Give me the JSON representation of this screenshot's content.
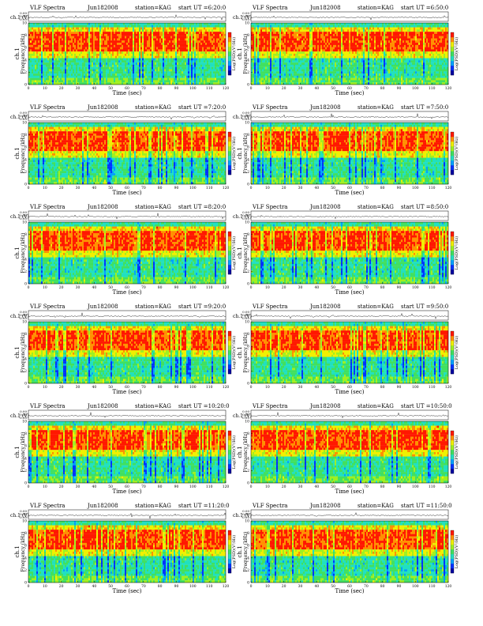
{
  "page": {
    "colors": {
      "background": "#ffffff",
      "colormap": [
        "#0000a0",
        "#0033ff",
        "#00a0ff",
        "#20e0c0",
        "#40e060",
        "#a0f020",
        "#f0f000",
        "#ff9000",
        "#ff1800"
      ]
    }
  },
  "chart_data": [
    {
      "type": "heatmap",
      "title": "VLF Spectra",
      "date": "Jun182008",
      "station": "station=KAG",
      "start": "start  UT =6:20:0",
      "xlabel": "Time (sec)",
      "ylabel_top": "ch.1 (V)",
      "ylabel_channel": "ch.1",
      "ylabel": "Frequency (kHz)",
      "colorbar_label": "Log(PSD)(V²/Hz)",
      "x": [
        0,
        10,
        20,
        30,
        40,
        50,
        60,
        70,
        80,
        90,
        100,
        110,
        120
      ],
      "y": [
        0,
        2,
        4,
        6,
        8,
        10
      ],
      "waveform_ticks": [
        "0.00",
        "0.50",
        "-0.50"
      ],
      "xlim": [
        0,
        120
      ],
      "ylim": [
        0,
        10
      ],
      "grid": false
    },
    {
      "type": "heatmap",
      "title": "VLF Spectra",
      "date": "Jun182008",
      "station": "station=KAG",
      "start": "start  UT =6:50:0",
      "xlabel": "Time (sec)",
      "ylabel_top": "ch.1 (V)",
      "ylabel_channel": "ch.1",
      "ylabel": "Frequency (kHz)",
      "colorbar_label": "Log(PSD)(V²/Hz)",
      "x": [
        0,
        10,
        20,
        30,
        40,
        50,
        60,
        70,
        80,
        90,
        100,
        110,
        120
      ],
      "y": [
        0,
        2,
        4,
        6,
        8,
        10
      ],
      "waveform_ticks": [
        "0.00",
        "0.50",
        "-0.50"
      ],
      "xlim": [
        0,
        120
      ],
      "ylim": [
        0,
        10
      ],
      "grid": false
    },
    {
      "type": "heatmap",
      "title": "VLF Spectra",
      "date": "Jun182008",
      "station": "station=KAG",
      "start": "start  UT =7:20:0",
      "xlabel": "Time (sec)",
      "ylabel_top": "ch.1 (V)",
      "ylabel_channel": "ch.1",
      "ylabel": "Frequency (kHz)",
      "colorbar_label": "Log(PSD)(V²/Hz)",
      "x": [
        0,
        10,
        20,
        30,
        40,
        50,
        60,
        70,
        80,
        90,
        100,
        110,
        120
      ],
      "y": [
        0,
        2,
        4,
        6,
        8,
        10
      ],
      "waveform_ticks": [
        "0.00",
        "0.50",
        "-0.50"
      ],
      "xlim": [
        0,
        120
      ],
      "ylim": [
        0,
        10
      ],
      "grid": false
    },
    {
      "type": "heatmap",
      "title": "VLF Spectra",
      "date": "Jun182008",
      "station": "station=KAG",
      "start": "start  UT =7:50:0",
      "xlabel": "Time (sec)",
      "ylabel_top": "ch.1 (V)",
      "ylabel_channel": "ch.1",
      "ylabel": "Frequency (kHz)",
      "colorbar_label": "Log(PSD)(V²/Hz)",
      "x": [
        0,
        10,
        20,
        30,
        40,
        50,
        60,
        70,
        80,
        90,
        100,
        110,
        120
      ],
      "y": [
        0,
        2,
        4,
        6,
        8,
        10
      ],
      "waveform_ticks": [
        "0.00",
        "0.50",
        "-0.50"
      ],
      "xlim": [
        0,
        120
      ],
      "ylim": [
        0,
        10
      ],
      "grid": false
    },
    {
      "type": "heatmap",
      "title": "VLF Spectra",
      "date": "Jun182008",
      "station": "station=KAG",
      "start": "start  UT =8:20:0",
      "xlabel": "Time (sec)",
      "ylabel_top": "ch.1 (V)",
      "ylabel_channel": "ch.1",
      "ylabel": "Frequency (kHz)",
      "colorbar_label": "Log(PSD)(V²/Hz)",
      "x": [
        0,
        10,
        20,
        30,
        40,
        50,
        60,
        70,
        80,
        90,
        100,
        110,
        120
      ],
      "y": [
        0,
        2,
        4,
        6,
        8,
        10
      ],
      "waveform_ticks": [
        "0.00",
        "0.50",
        "-0.50"
      ],
      "xlim": [
        0,
        120
      ],
      "ylim": [
        0,
        10
      ],
      "grid": false
    },
    {
      "type": "heatmap",
      "title": "VLF Spectra",
      "date": "Jun182008",
      "station": "station=KAG",
      "start": "start  UT =8:50:0",
      "xlabel": "Time (sec)",
      "ylabel_top": "ch.1 (V)",
      "ylabel_channel": "ch.1",
      "ylabel": "Frequency (kHz)",
      "colorbar_label": "Log(PSD)(V²/Hz)",
      "x": [
        0,
        10,
        20,
        30,
        40,
        50,
        60,
        70,
        80,
        90,
        100,
        110,
        120
      ],
      "y": [
        0,
        2,
        4,
        6,
        8,
        10
      ],
      "waveform_ticks": [
        "0.00",
        "0.50",
        "-0.50"
      ],
      "xlim": [
        0,
        120
      ],
      "ylim": [
        0,
        10
      ],
      "grid": false
    },
    {
      "type": "heatmap",
      "title": "VLF Spectra",
      "date": "Jun182008",
      "station": "station=KAG",
      "start": "start  UT =9:20:0",
      "xlabel": "Time (sec)",
      "ylabel_top": "ch.1 (V)",
      "ylabel_channel": "ch.1",
      "ylabel": "Frequency (kHz)",
      "colorbar_label": "Log(PSD)(V²/Hz)",
      "x": [
        0,
        10,
        20,
        30,
        40,
        50,
        60,
        70,
        80,
        90,
        100,
        110,
        120
      ],
      "y": [
        0,
        2,
        4,
        6,
        8,
        10
      ],
      "waveform_ticks": [
        "0.00",
        "0.50",
        "-0.50"
      ],
      "xlim": [
        0,
        120
      ],
      "ylim": [
        0,
        10
      ],
      "grid": false
    },
    {
      "type": "heatmap",
      "title": "VLF Spectra",
      "date": "Jun182008",
      "station": "station=KAG",
      "start": "start  UT =9:50:0",
      "xlabel": "Time (sec)",
      "ylabel_top": "ch.1 (V)",
      "ylabel_channel": "ch.1",
      "ylabel": "Frequency (kHz)",
      "colorbar_label": "Log(PSD)(V²/Hz)",
      "x": [
        0,
        10,
        20,
        30,
        40,
        50,
        60,
        70,
        80,
        90,
        100,
        110,
        120
      ],
      "y": [
        0,
        2,
        4,
        6,
        8,
        10
      ],
      "waveform_ticks": [
        "0.00",
        "0.50",
        "-0.50"
      ],
      "xlim": [
        0,
        120
      ],
      "ylim": [
        0,
        10
      ],
      "grid": false
    },
    {
      "type": "heatmap",
      "title": "VLF Spectra",
      "date": "Jun182008",
      "station": "station=KAG",
      "start": "start  UT =10:20:0",
      "xlabel": "Time (sec)",
      "ylabel_top": "ch.1 (V)",
      "ylabel_channel": "ch.1",
      "ylabel": "Frequency (kHz)",
      "colorbar_label": "Log(PSD)(V²/Hz)",
      "x": [
        0,
        10,
        20,
        30,
        40,
        50,
        60,
        70,
        80,
        90,
        100,
        110,
        120
      ],
      "y": [
        0,
        2,
        4,
        6,
        8,
        10
      ],
      "waveform_ticks": [
        "0.00",
        "0.50",
        "-0.50"
      ],
      "xlim": [
        0,
        120
      ],
      "ylim": [
        0,
        10
      ],
      "grid": false
    },
    {
      "type": "heatmap",
      "title": "VLF Spectra",
      "date": "Jun182008",
      "station": "station=KAG",
      "start": "start  UT =10:50:0",
      "xlabel": "Time (sec)",
      "ylabel_top": "ch.1 (V)",
      "ylabel_channel": "ch.1",
      "ylabel": "Frequency (kHz)",
      "colorbar_label": "Log(PSD)(V²/Hz)",
      "x": [
        0,
        10,
        20,
        30,
        40,
        50,
        60,
        70,
        80,
        90,
        100,
        110,
        120
      ],
      "y": [
        0,
        2,
        4,
        6,
        8,
        10
      ],
      "waveform_ticks": [
        "0.00",
        "0.50",
        "-0.50"
      ],
      "xlim": [
        0,
        120
      ],
      "ylim": [
        0,
        10
      ],
      "grid": false
    },
    {
      "type": "heatmap",
      "title": "VLF Spectra",
      "date": "Jun182008",
      "station": "station=KAG",
      "start": "start  UT =11:20:0",
      "xlabel": "Time (sec)",
      "ylabel_top": "ch.1 (V)",
      "ylabel_channel": "ch.1",
      "ylabel": "Frequency (kHz)",
      "colorbar_label": "Log(PSD)(V²/Hz)",
      "x": [
        0,
        10,
        20,
        30,
        40,
        50,
        60,
        70,
        80,
        90,
        100,
        110,
        120
      ],
      "y": [
        0,
        2,
        4,
        6,
        8,
        10
      ],
      "waveform_ticks": [
        "0.00",
        "0.50",
        "-0.50"
      ],
      "xlim": [
        0,
        120
      ],
      "ylim": [
        0,
        10
      ],
      "grid": false
    },
    {
      "type": "heatmap",
      "title": "VLF Spectra",
      "date": "Jun182008",
      "station": "station=KAG",
      "start": "start  UT =11:50:0",
      "xlabel": "Time (sec)",
      "ylabel_top": "ch.1 (V)",
      "ylabel_channel": "ch.1",
      "ylabel": "Frequency (kHz)",
      "colorbar_label": "Log(PSD)(V²/Hz)",
      "x": [
        0,
        10,
        20,
        30,
        40,
        50,
        60,
        70,
        80,
        90,
        100,
        110,
        120
      ],
      "y": [
        0,
        2,
        4,
        6,
        8,
        10
      ],
      "waveform_ticks": [
        "0.00",
        "0.50",
        "-0.50"
      ],
      "xlim": [
        0,
        120
      ],
      "ylim": [
        0,
        10
      ],
      "grid": false
    }
  ]
}
